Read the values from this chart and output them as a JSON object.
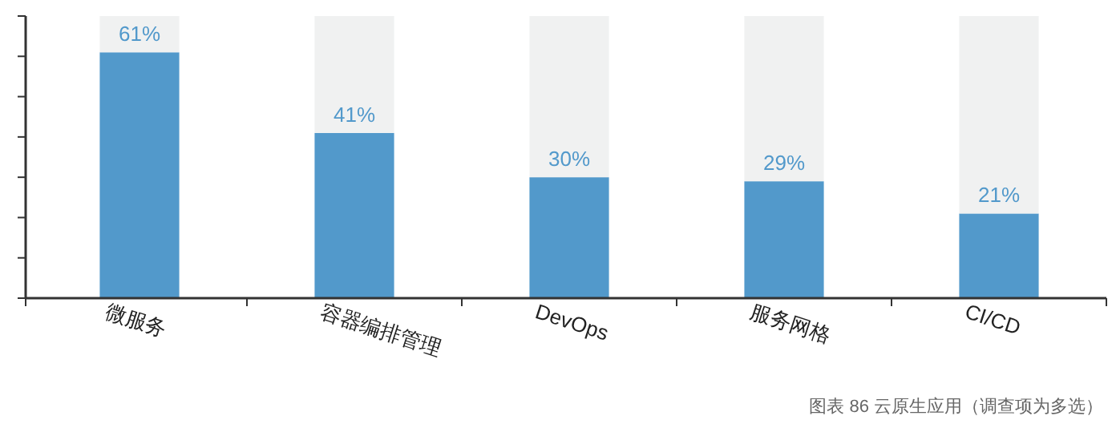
{
  "chart_data": {
    "type": "bar",
    "stacked": true,
    "categories": [
      "微服务",
      "容器编排管理",
      "DevOps",
      "服务网格",
      "CI/CD"
    ],
    "series": [
      {
        "color": "#5299cb",
        "values": [
          61,
          41,
          30,
          29,
          21
        ],
        "value_labels": [
          "61%",
          "41%",
          "30%",
          "29%",
          "21%"
        ]
      },
      {
        "color": "#f0f1f1",
        "values": [
          9,
          29,
          40,
          41,
          49
        ]
      }
    ],
    "ylim": [
      0,
      70
    ],
    "yticks": [
      {
        "value": 0,
        "label": null
      },
      {
        "value": 10,
        "label": null
      },
      {
        "value": 20,
        "label": null
      },
      {
        "value": 30,
        "label": null
      },
      {
        "value": 40,
        "label": null
      },
      {
        "value": 50,
        "label": null
      },
      {
        "value": 60,
        "label": null
      },
      {
        "value": 70,
        "label": null
      }
    ],
    "tick_labels": "x",
    "grid": false,
    "annotations": [
      "图表 86  云原生应用（调查项为多选）"
    ]
  }
}
